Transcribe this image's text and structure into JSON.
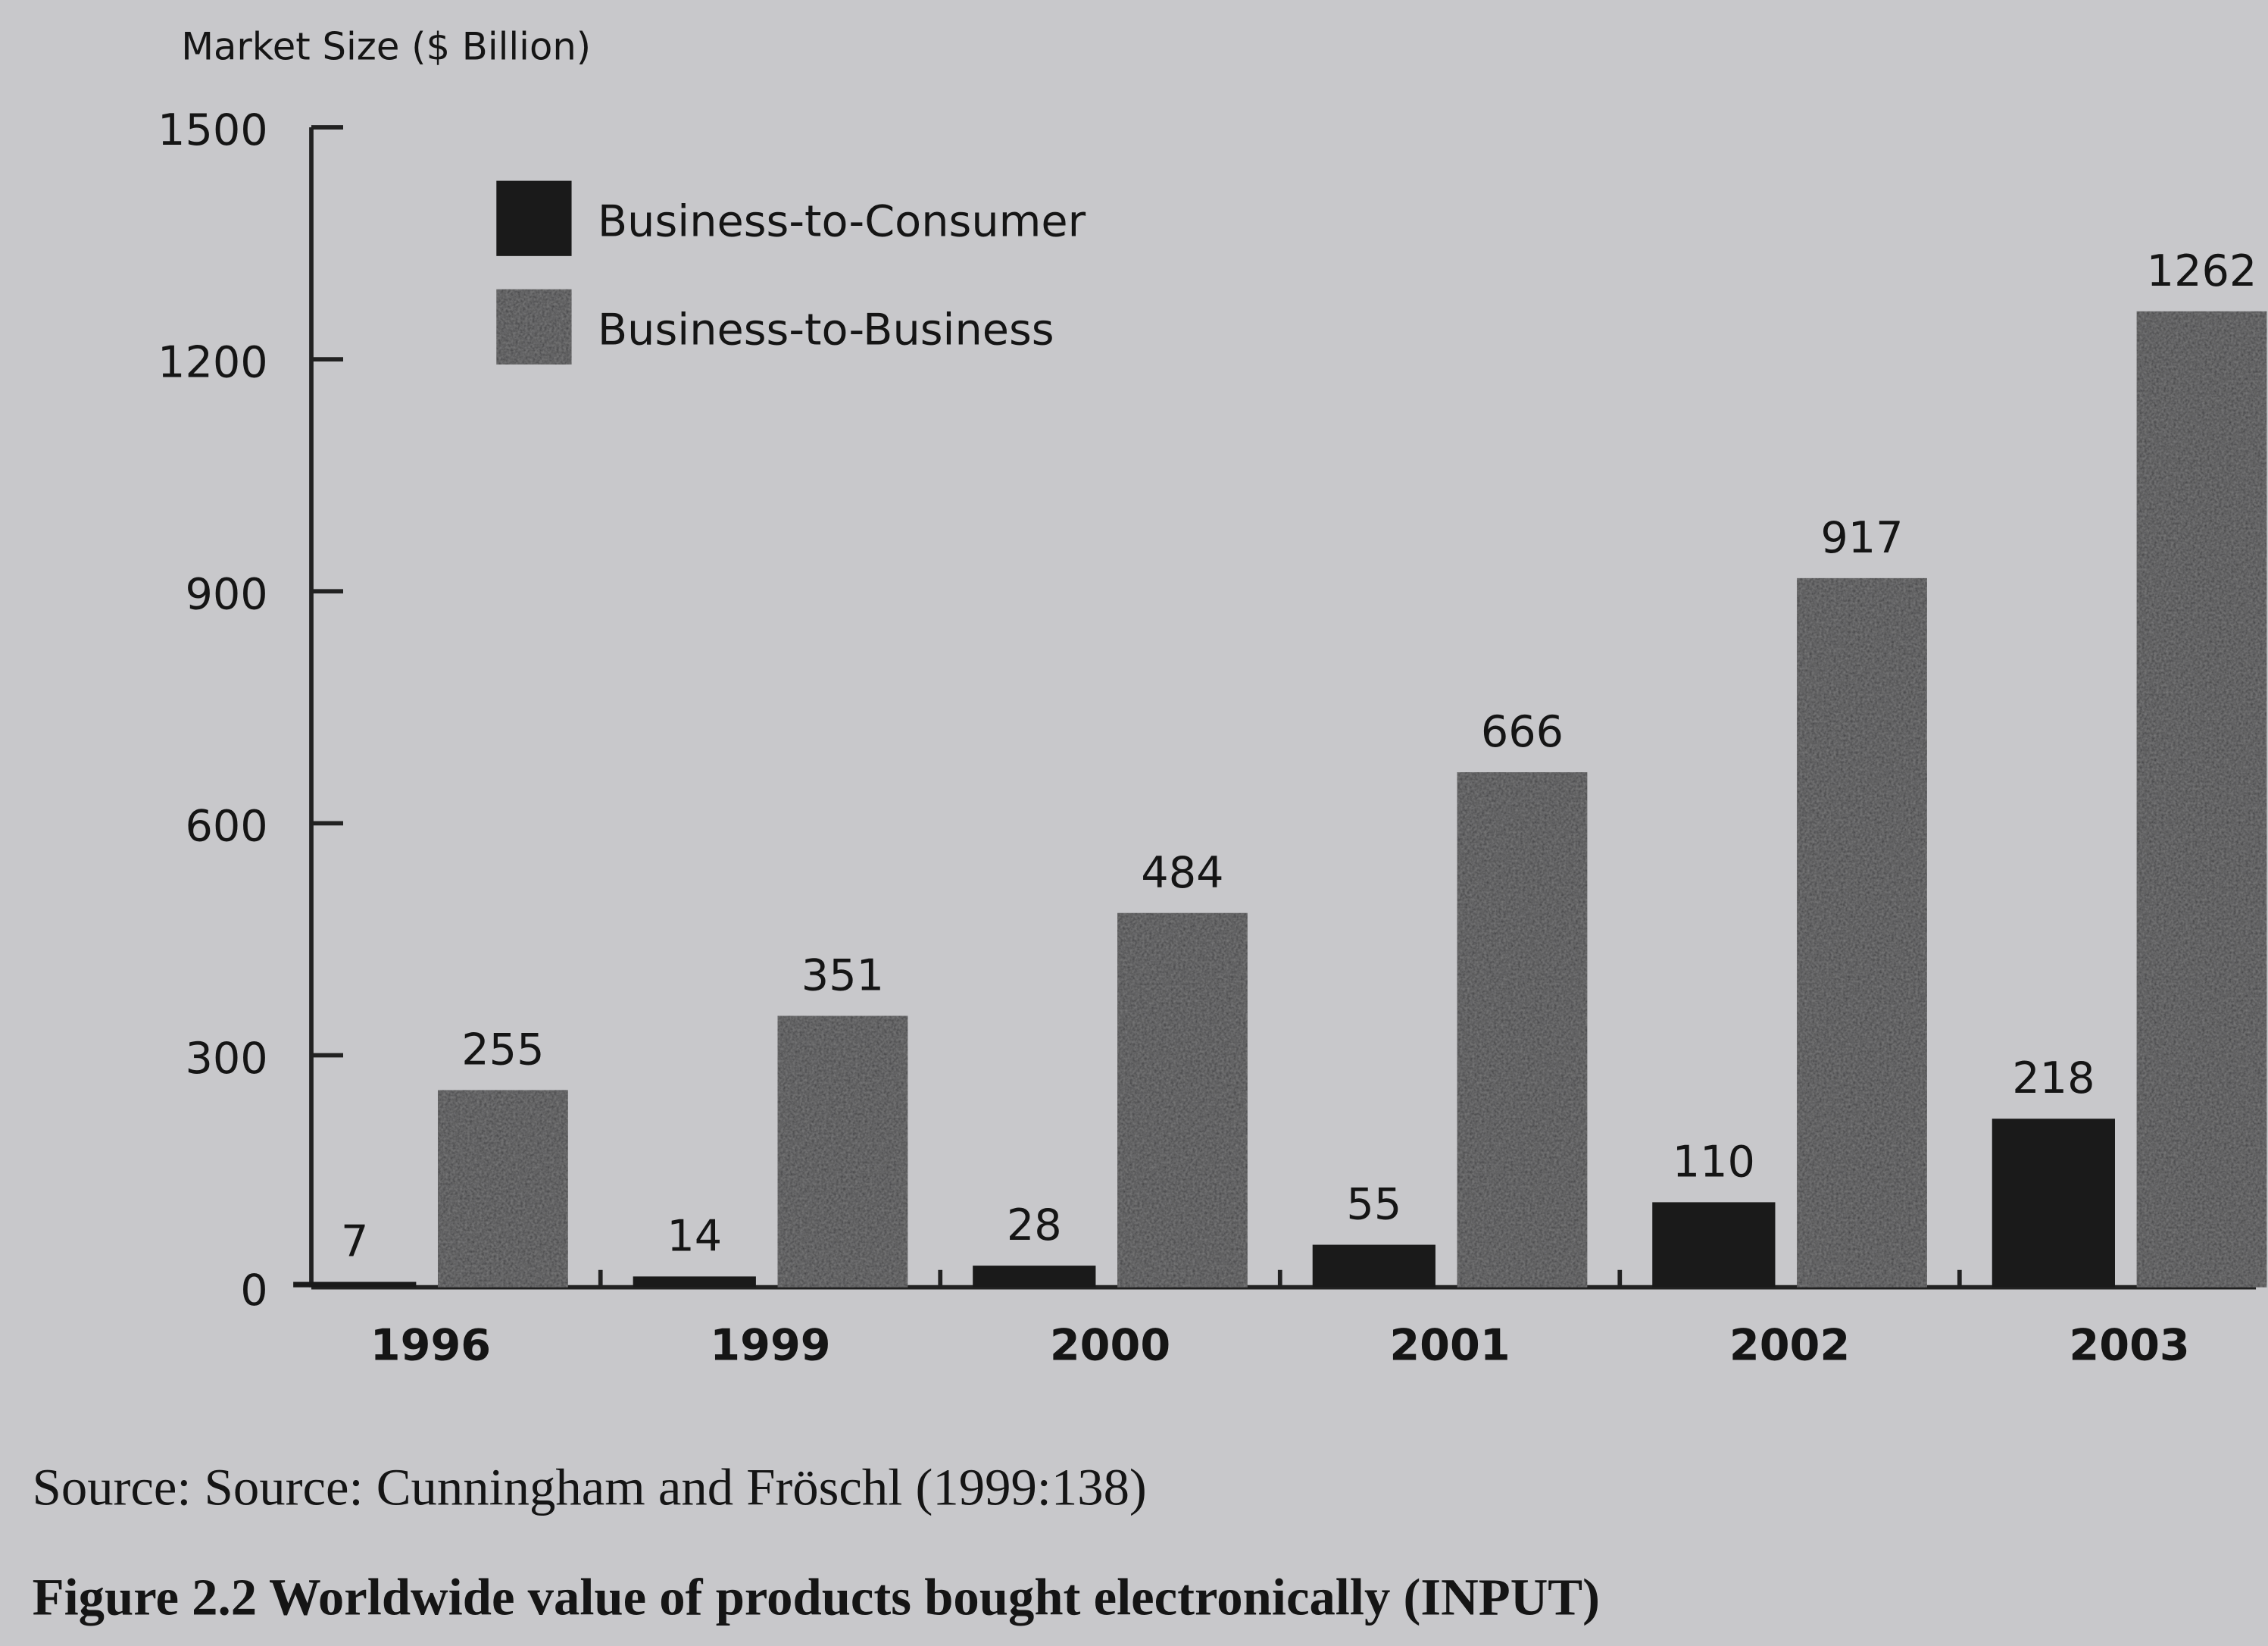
{
  "chart_data": {
    "type": "bar",
    "y_label": "Market Size ($ Billion)",
    "categories": [
      "1996",
      "1999",
      "2000",
      "2001",
      "2002",
      "2003"
    ],
    "series": [
      {
        "name": "Business-to-Consumer",
        "color": "#1a1a1a",
        "values": [
          7,
          14,
          28,
          55,
          110,
          218
        ]
      },
      {
        "name": "Business-to-Business",
        "color": "#3e3e40",
        "values": [
          255,
          351,
          484,
          666,
          917,
          1262
        ]
      }
    ],
    "ylim": [
      0,
      1500
    ],
    "yticks": [
      0,
      300,
      600,
      900,
      1200,
      1500
    ],
    "legend": "upper left",
    "source": "Source: Source: Cunningham and Fröschl (1999:138)",
    "caption": "Figure 2.2 Worldwide value of products bought electronically (INPUT)"
  }
}
